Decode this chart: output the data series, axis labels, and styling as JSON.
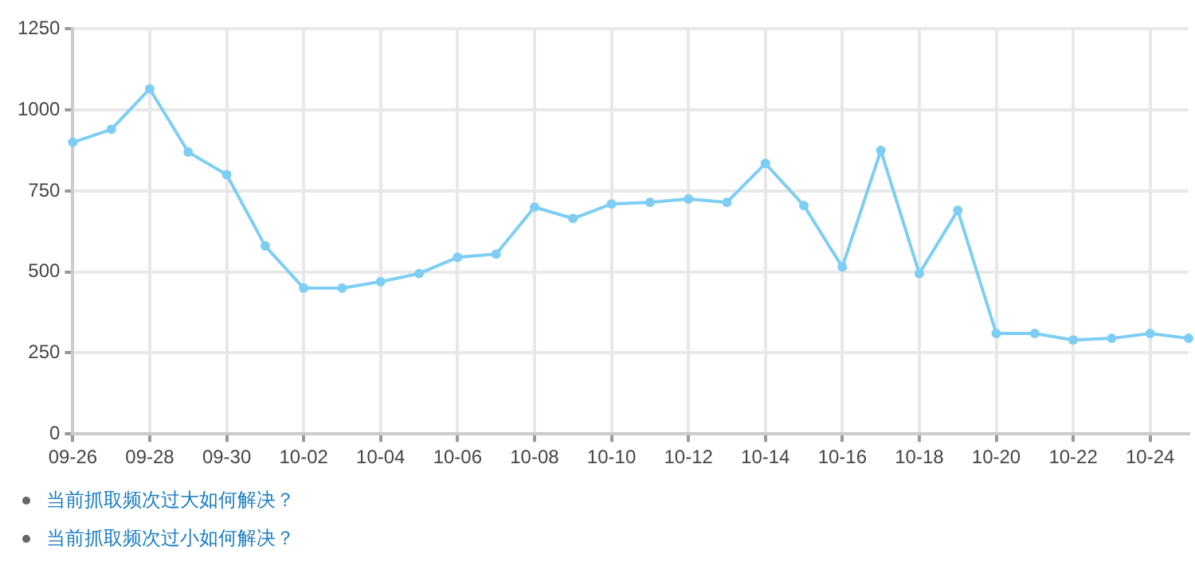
{
  "chart_data": {
    "type": "line",
    "categories": [
      "09-26",
      null,
      "09-28",
      null,
      "09-30",
      null,
      "10-02",
      null,
      "10-04",
      null,
      "10-06",
      null,
      "10-08",
      null,
      "10-10",
      null,
      "10-12",
      null,
      "10-14",
      null,
      "10-16",
      null,
      "10-18",
      null,
      "10-20",
      null,
      "10-22",
      null,
      "10-24",
      null
    ],
    "series": [
      {
        "color": "#7ecef4",
        "values": [
          900,
          940,
          1065,
          870,
          800,
          580,
          450,
          450,
          470,
          495,
          545,
          555,
          700,
          665,
          710,
          715,
          725,
          715,
          835,
          705,
          515,
          875,
          495,
          690,
          310,
          310,
          290,
          295,
          310,
          295
        ]
      }
    ],
    "ylim": [
      0,
      1250
    ],
    "yticks": [
      0,
      250,
      500,
      750,
      1000,
      1250
    ],
    "grid": true,
    "legend": false,
    "marker": "circle",
    "line_style": "solid",
    "annotations": [
      "当前抓取频次过大如何解决？",
      "当前抓取频次过小如何解决？"
    ]
  }
}
